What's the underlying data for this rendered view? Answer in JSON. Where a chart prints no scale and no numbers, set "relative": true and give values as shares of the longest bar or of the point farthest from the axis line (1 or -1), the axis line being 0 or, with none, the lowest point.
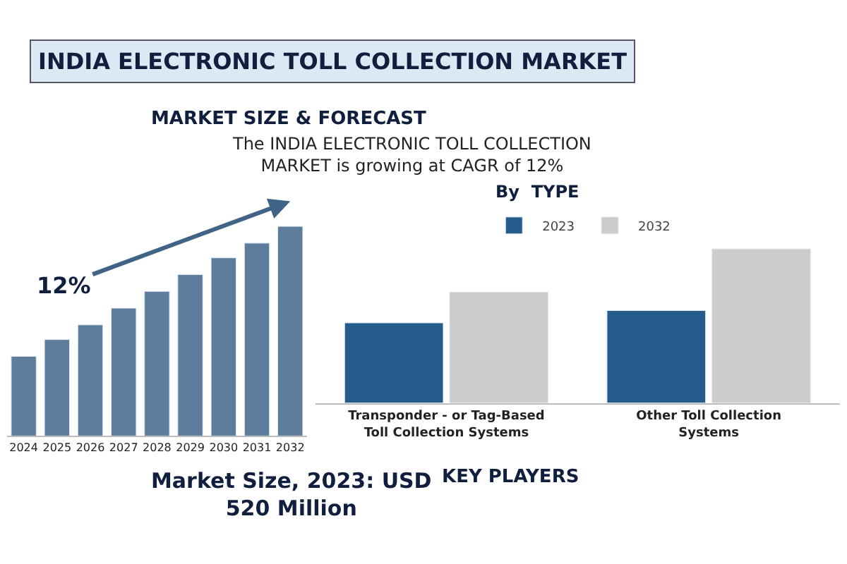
{
  "chart_data": [
    {
      "type": "other",
      "title": "INDIA ELECTRONIC TOLL COLLECTION MARKET",
      "annotations": [
        "The INDIA ELECTRONIC TOLL COLLECTION MARKET is growing at CAGR of 12%",
        "KEY PLAYERS"
      ]
    },
    {
      "type": "bar",
      "title": "MARKET SIZE & FORECAST",
      "relative": true,
      "categories": [
        "2024",
        "2025",
        "2026",
        "2027",
        "2028",
        "2029",
        "2030",
        "2031",
        "2032"
      ],
      "values": [
        0.38,
        0.46,
        0.53,
        0.61,
        0.69,
        0.77,
        0.85,
        0.92,
        1.0
      ],
      "color": "#5e7d9c",
      "annotations": [
        "12%",
        "Market Size, 2023: USD 520 Million"
      ]
    },
    {
      "type": "bar",
      "title": "By  TYPE",
      "relative": true,
      "categories": [
        "Transponder - or Tag-Based Toll Collection Systems",
        "Other Toll Collection Systems"
      ],
      "legend": "top",
      "series": [
        {
          "name": "2023",
          "color": "#255c8c",
          "values": [
            0.52,
            0.6
          ]
        },
        {
          "name": "2032",
          "color": "#cccccc",
          "values": [
            0.72,
            1.0
          ]
        }
      ]
    }
  ]
}
